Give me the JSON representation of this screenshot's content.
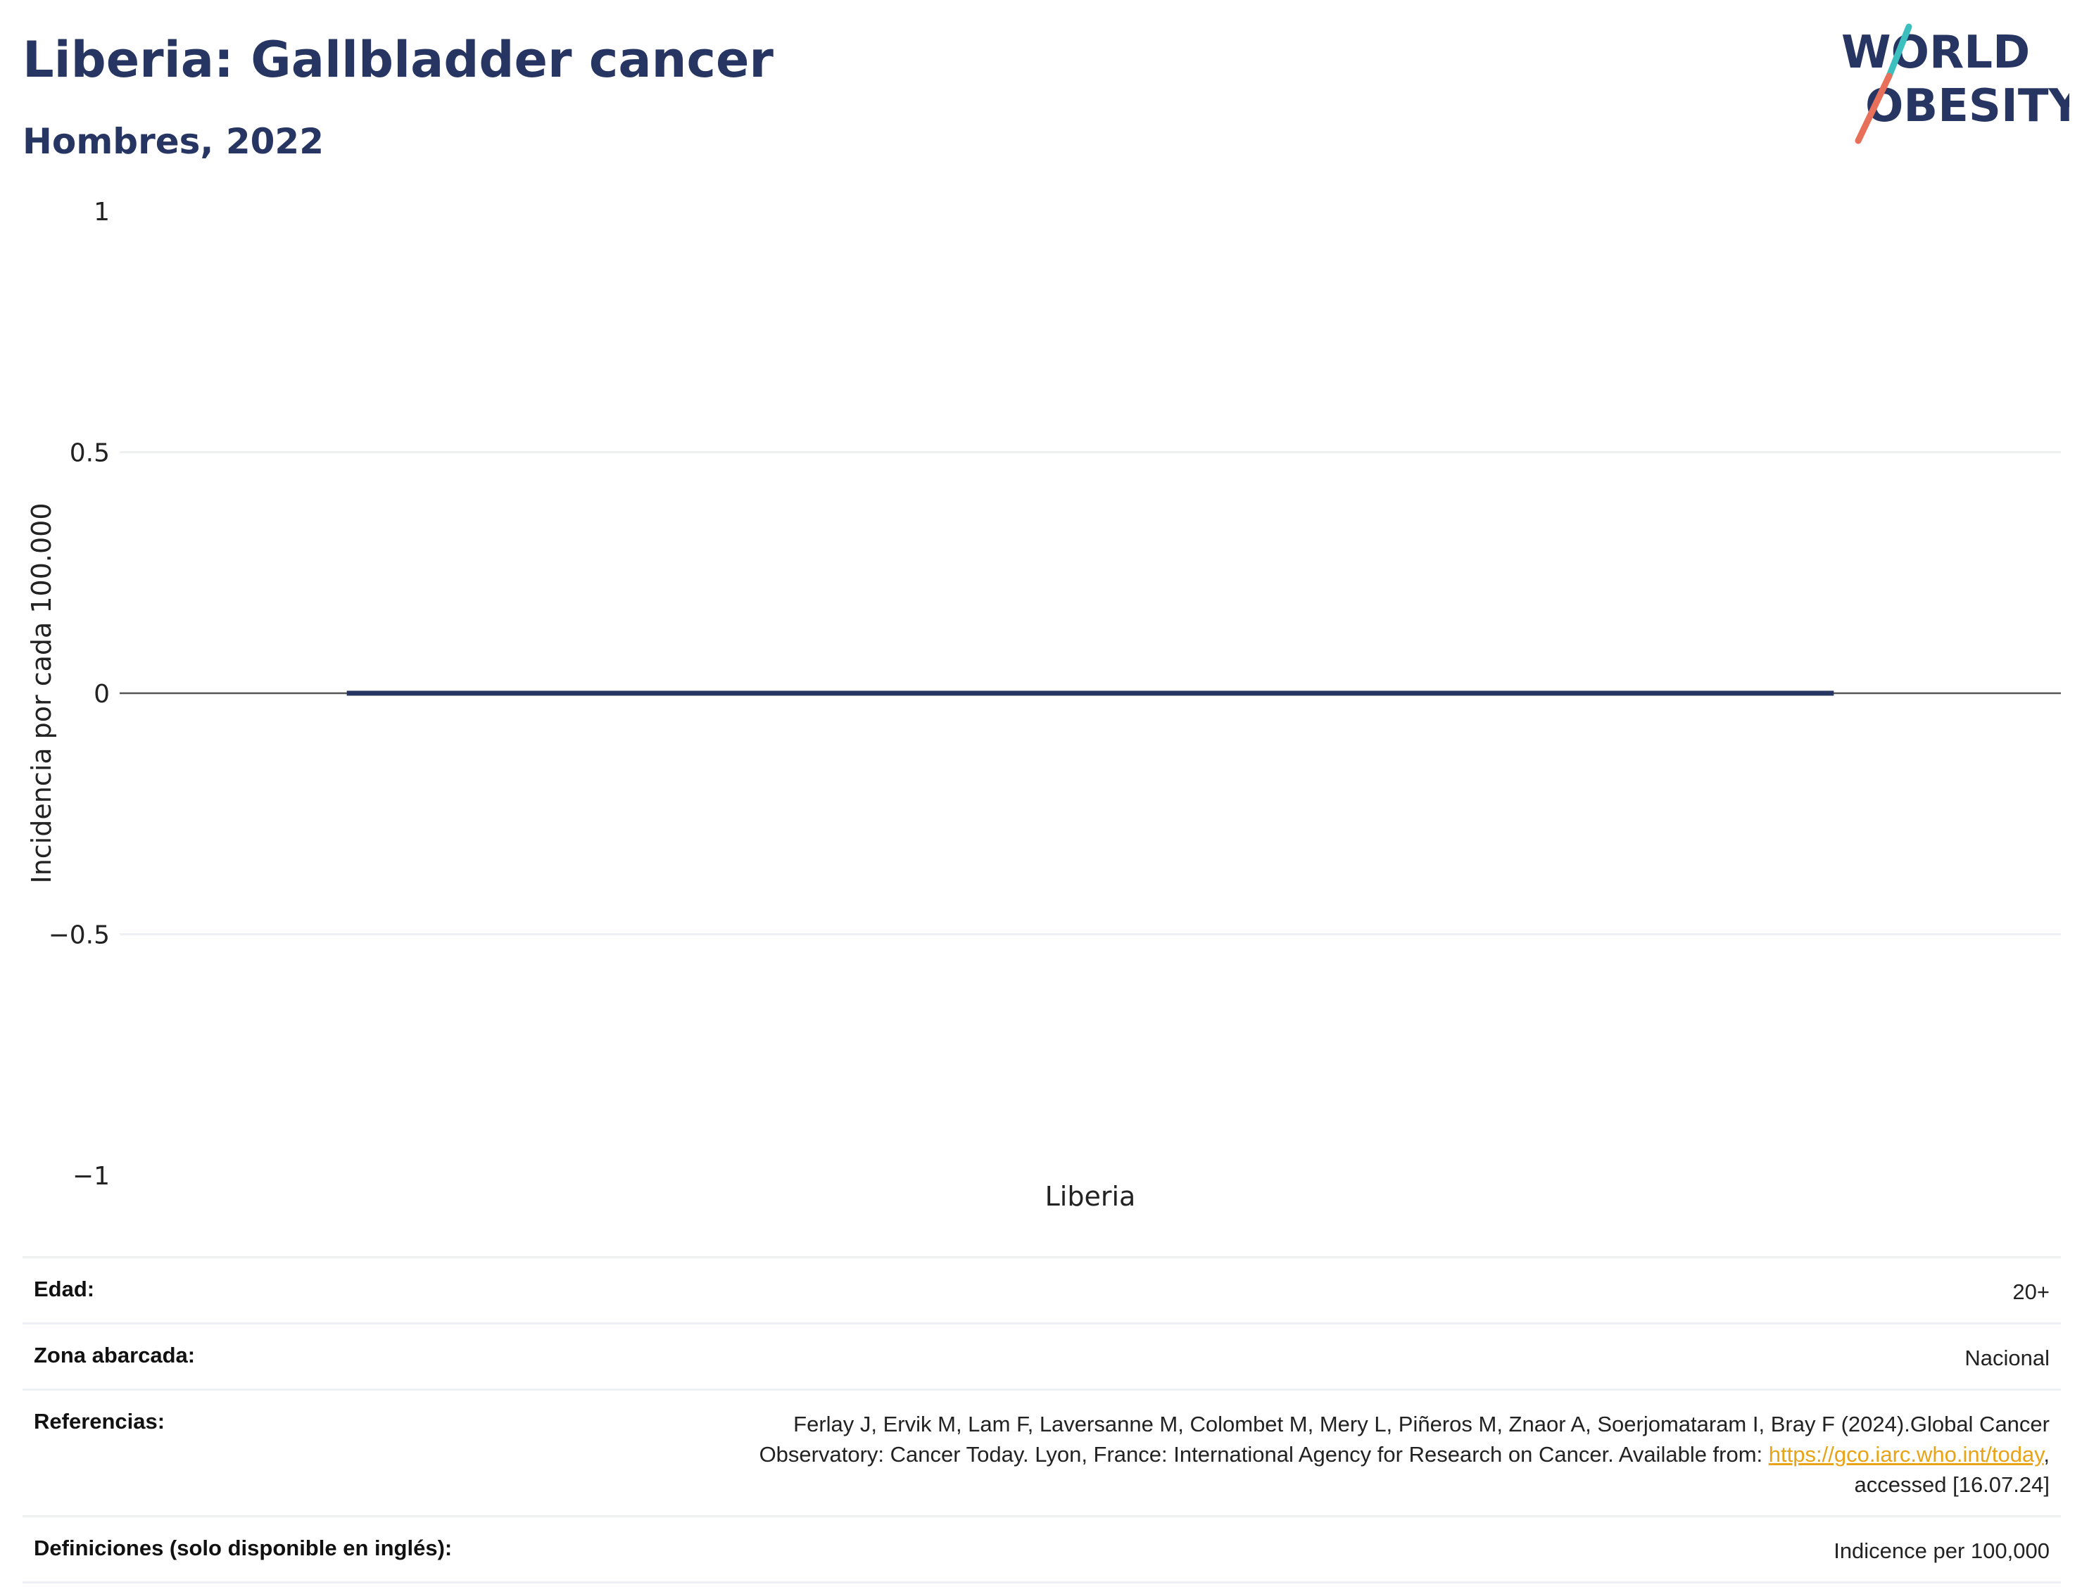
{
  "header": {
    "title": "Liberia: Gallbladder cancer",
    "subtitle": "Hombres, 2022"
  },
  "logo": {
    "line1": "WORLD",
    "line2": "OBESITY",
    "colors": {
      "text": "#263562",
      "slash_top": "#3bbfbf",
      "slash_bottom": "#e8705a"
    }
  },
  "chart_data": {
    "type": "bar",
    "categories": [
      "Liberia"
    ],
    "values": [
      0
    ],
    "ylabel": "Incidencia por cada 100.000",
    "ylim": [
      -1,
      1
    ],
    "yticks": [
      1,
      0.5,
      0,
      -0.5,
      -1
    ],
    "ytick_labels": [
      "1",
      "0.5",
      "0",
      "−0.5",
      "−1"
    ],
    "grid": true,
    "colors": {
      "bar": "#263562",
      "zero_line": "#555555",
      "grid": "#eef0f4"
    }
  },
  "meta": {
    "rows": [
      {
        "label": "Edad:",
        "value": "20+"
      },
      {
        "label": "Zona abarcada:",
        "value": "Nacional"
      },
      {
        "label": "Referencias:",
        "value_line1": "Ferlay J, Ervik M, Lam F, Laversanne M, Colombet M, Mery L, Piñeros M, Znaor A, Soerjomataram I, Bray F (2024).Global Cancer",
        "value_line2_prefix": "Observatory: Cancer Today. Lyon, France: International Agency for Research on Cancer. Available from: ",
        "link_text": "https://gco.iarc.who.int/today",
        "value_line2_suffix": ",",
        "value_line3": "accessed [16.07.24]"
      },
      {
        "label": "Definiciones (solo disponible en inglés):",
        "value": "Indicence per 100,000"
      }
    ]
  }
}
